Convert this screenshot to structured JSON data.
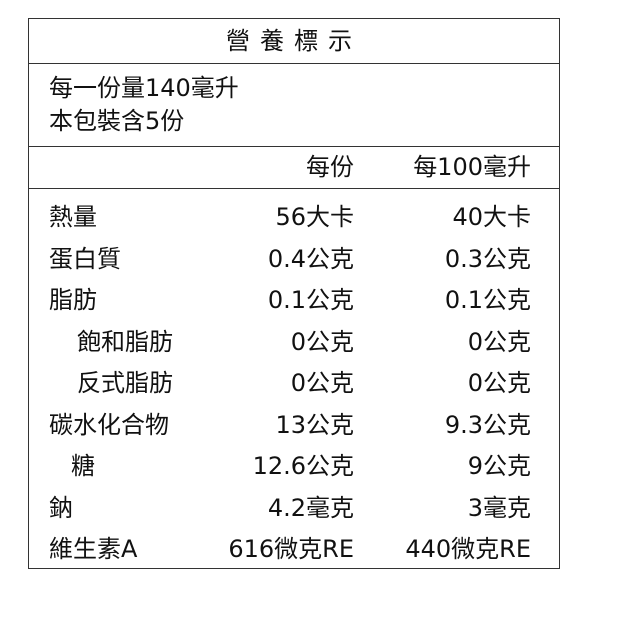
{
  "title": "營養標示",
  "serving": {
    "size": "每一份量140毫升",
    "count": "本包裝含5份"
  },
  "header": {
    "per_serving": "每份",
    "per_100": "每100毫升"
  },
  "rows": [
    {
      "label": "熱量",
      "per_serving": "56大卡",
      "per_100": "40大卡",
      "indent": 0
    },
    {
      "label": "蛋白質",
      "per_serving": "0.4公克",
      "per_100": "0.3公克",
      "indent": 0
    },
    {
      "label": "脂肪",
      "per_serving": "0.1公克",
      "per_100": "0.1公克",
      "indent": 0
    },
    {
      "label": "飽和脂肪",
      "per_serving": "0公克",
      "per_100": "0公克",
      "indent": 1
    },
    {
      "label": "反式脂肪",
      "per_serving": "0公克",
      "per_100": "0公克",
      "indent": 1
    },
    {
      "label": "碳水化合物",
      "per_serving": "13公克",
      "per_100": "9.3公克",
      "indent": 0
    },
    {
      "label": "糖",
      "per_serving": "12.6公克",
      "per_100": "9公克",
      "indent": 2
    },
    {
      "label": "鈉",
      "per_serving": "4.2毫克",
      "per_100": "3毫克",
      "indent": 0
    },
    {
      "label": "維生素A",
      "per_serving": "616微克RE",
      "per_100": "440微克RE",
      "indent": 0
    }
  ]
}
